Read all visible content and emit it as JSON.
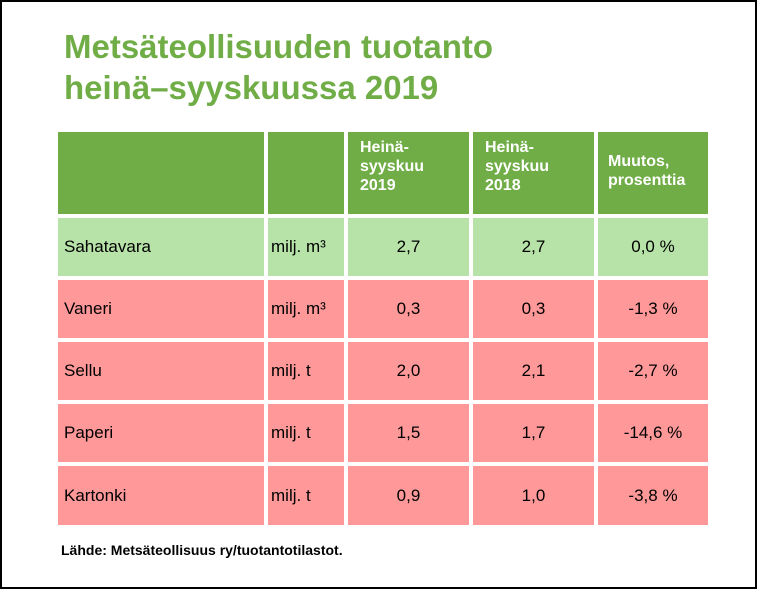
{
  "title": {
    "line1": "Metsäteollisuuden tuotanto",
    "line2": "heinä–syyskuussa 2019"
  },
  "table": {
    "headers": {
      "col1": "",
      "col2": "",
      "col3": "Heinä-\nsyyskuu\n2019",
      "col4": "Heinä-\nsyyskuu\n2018",
      "col5": "Muutos,\nprosenttia"
    },
    "rows": [
      {
        "product": "Sahatavara",
        "unit": "milj. m³",
        "v2019": "2,7",
        "v2018": "2,7",
        "change": "0,0 %",
        "status": "green"
      },
      {
        "product": "Vaneri",
        "unit": "milj. m³",
        "v2019": "0,3",
        "v2018": "0,3",
        "change": "-1,3 %",
        "status": "red"
      },
      {
        "product": "Sellu",
        "unit": "milj. t",
        "v2019": "2,0",
        "v2018": "2,1",
        "change": "-2,7 %",
        "status": "red"
      },
      {
        "product": "Paperi",
        "unit": "milj. t",
        "v2019": "1,5",
        "v2018": "1,7",
        "change": "-14,6 %",
        "status": "red"
      },
      {
        "product": "Kartonki",
        "unit": "milj. t",
        "v2019": "0,9",
        "v2018": "1,0",
        "change": "-3,8 %",
        "status": "red"
      }
    ]
  },
  "colors": {
    "title_green": "#70ad47",
    "header_green": "#70ad47",
    "row_green": "#b7e3a8",
    "row_red": "#ff9999"
  },
  "source": "Lähde: Metsäteollisuus ry/tuotantotilastot."
}
